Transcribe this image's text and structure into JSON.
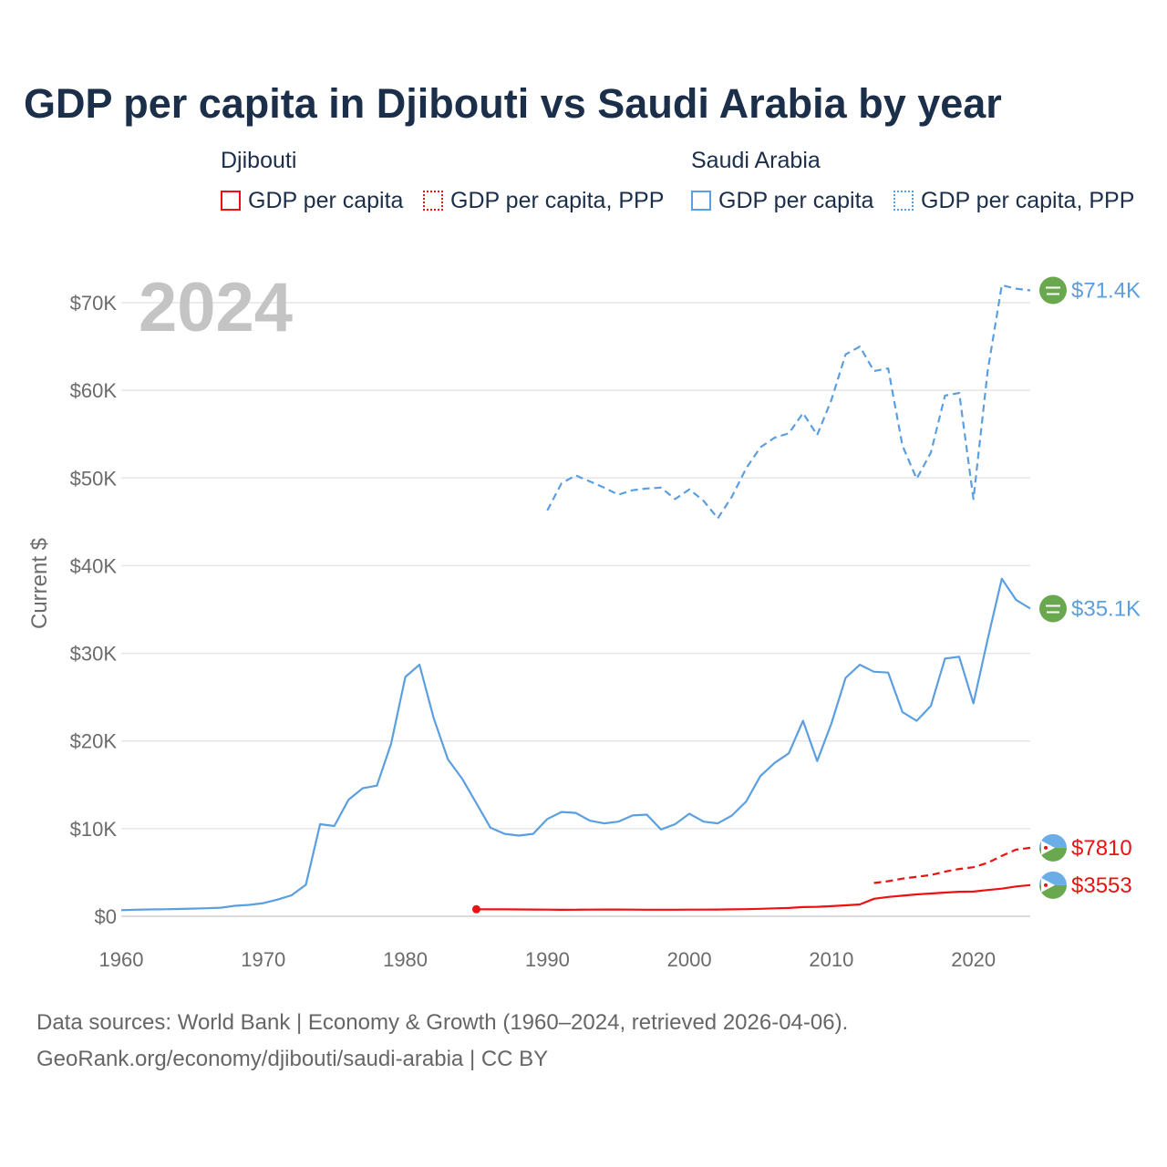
{
  "title": "GDP per capita in Djibouti vs Saudi Arabia by year",
  "legend": {
    "groups": [
      {
        "name": "Djibouti",
        "color": "#ee1111",
        "items": [
          {
            "label": "GDP per capita",
            "style": "solid"
          },
          {
            "label": "GDP per capita, PPP",
            "style": "dotted"
          }
        ]
      },
      {
        "name": "Saudi Arabia",
        "color": "#5b9fe0",
        "items": [
          {
            "label": "GDP per capita",
            "style": "solid"
          },
          {
            "label": "GDP per capita, PPP",
            "style": "dotted"
          }
        ]
      }
    ]
  },
  "footer": {
    "line1": "Data sources: World Bank | Economy & Growth (1960–2024, retrieved 2026-04-06).",
    "line2": "GeoRank.org/economy/djibouti/saudi-arabia | CC BY"
  },
  "chart_data": {
    "type": "line",
    "title": "GDP per capita in Djibouti vs Saudi Arabia by year",
    "year_label": "2024",
    "xlabel": "",
    "ylabel": "Current $",
    "xlim": [
      1960,
      2024
    ],
    "ylim": [
      0,
      70000
    ],
    "x_ticks": [
      1960,
      1970,
      1980,
      1990,
      2000,
      2010,
      2020
    ],
    "y_ticks": [
      0,
      10000,
      20000,
      30000,
      40000,
      50000,
      60000,
      70000
    ],
    "y_tick_labels": [
      "$0",
      "$10K",
      "$20K",
      "$30K",
      "$40K",
      "$50K",
      "$60K",
      "$70K"
    ],
    "grid": true,
    "series": [
      {
        "name": "Saudi Arabia GDP per capita",
        "country": "Saudi Arabia",
        "color": "#5b9fe0",
        "style": "solid",
        "end_label": "$35.1K",
        "x": [
          1960,
          1961,
          1962,
          1963,
          1964,
          1965,
          1966,
          1967,
          1968,
          1969,
          1970,
          1971,
          1972,
          1973,
          1974,
          1975,
          1976,
          1977,
          1978,
          1979,
          1980,
          1981,
          1982,
          1983,
          1984,
          1985,
          1986,
          1987,
          1988,
          1989,
          1990,
          1991,
          1992,
          1993,
          1994,
          1995,
          1996,
          1997,
          1998,
          1999,
          2000,
          2001,
          2002,
          2003,
          2004,
          2005,
          2006,
          2007,
          2008,
          2009,
          2010,
          2011,
          2012,
          2013,
          2014,
          2015,
          2016,
          2017,
          2018,
          2019,
          2020,
          2021,
          2022,
          2023,
          2024
        ],
        "values": [
          700,
          750,
          780,
          800,
          830,
          870,
          920,
          980,
          1200,
          1300,
          1500,
          1900,
          2400,
          3600,
          10500,
          10300,
          13300,
          14600,
          14900,
          19700,
          27300,
          28700,
          22600,
          17900,
          15700,
          12900,
          10100,
          9400,
          9200,
          9400,
          11100,
          11900,
          11800,
          10900,
          10600,
          10800,
          11500,
          11600,
          9900,
          10500,
          11700,
          10800,
          10600,
          11500,
          13100,
          16000,
          17500,
          18600,
          22300,
          17700,
          22000,
          27200,
          28700,
          27900,
          27800,
          23300,
          22300,
          24000,
          29400,
          29600,
          24300,
          31600,
          38500,
          36100,
          35100
        ]
      },
      {
        "name": "Saudi Arabia GDP per capita, PPP",
        "country": "Saudi Arabia",
        "color": "#5b9fe0",
        "style": "dashed",
        "end_label": "$71.4K",
        "x": [
          1990,
          1991,
          1992,
          1993,
          1994,
          1995,
          1996,
          1997,
          1998,
          1999,
          2000,
          2001,
          2002,
          2003,
          2004,
          2005,
          2006,
          2007,
          2008,
          2009,
          2010,
          2011,
          2012,
          2013,
          2014,
          2015,
          2016,
          2017,
          2018,
          2019,
          2020,
          2021,
          2022,
          2023,
          2024
        ],
        "values": [
          46300,
          49400,
          50300,
          49600,
          48900,
          48100,
          48600,
          48800,
          48900,
          47600,
          48700,
          47400,
          45400,
          47900,
          51100,
          53500,
          54600,
          55100,
          57400,
          54900,
          58900,
          64100,
          65000,
          62200,
          62500,
          53700,
          49900,
          52900,
          59400,
          59700,
          47600,
          62200,
          72000,
          71600,
          71400
        ]
      },
      {
        "name": "Djibouti GDP per capita",
        "country": "Djibouti",
        "color": "#ee1111",
        "style": "solid",
        "end_label": "$3553",
        "x": [
          1985,
          1986,
          1987,
          1988,
          1989,
          1990,
          1991,
          1992,
          1993,
          1994,
          1995,
          1996,
          1997,
          1998,
          1999,
          2000,
          2001,
          2002,
          2003,
          2004,
          2005,
          2006,
          2007,
          2008,
          2009,
          2010,
          2011,
          2012,
          2013,
          2014,
          2015,
          2016,
          2017,
          2018,
          2019,
          2020,
          2021,
          2022,
          2023,
          2024
        ],
        "values": [
          800,
          790,
          790,
          780,
          770,
          760,
          740,
          750,
          760,
          770,
          770,
          760,
          750,
          750,
          750,
          760,
          760,
          770,
          790,
          810,
          850,
          900,
          950,
          1050,
          1080,
          1150,
          1250,
          1350,
          2000,
          2200,
          2350,
          2500,
          2600,
          2700,
          2800,
          2820,
          3000,
          3150,
          3400,
          3553
        ]
      },
      {
        "name": "Djibouti GDP per capita, PPP",
        "country": "Djibouti",
        "color": "#ee1111",
        "style": "dashed",
        "end_label": "$7810",
        "x": [
          2013,
          2014,
          2015,
          2016,
          2017,
          2018,
          2019,
          2020,
          2021,
          2022,
          2023,
          2024
        ],
        "values": [
          3800,
          4000,
          4300,
          4500,
          4700,
          5100,
          5400,
          5600,
          6100,
          6900,
          7600,
          7810
        ]
      }
    ]
  },
  "end_label_colors": {
    "Saudi Arabia": "#5b9fe0",
    "Djibouti": "#ee1111"
  },
  "flag_colors": {
    "saudi": "#6aa84f",
    "djibouti_top": "#6aaee8",
    "djibouti_bottom": "#6aa84f",
    "djibouti_star": "#ee1111"
  }
}
